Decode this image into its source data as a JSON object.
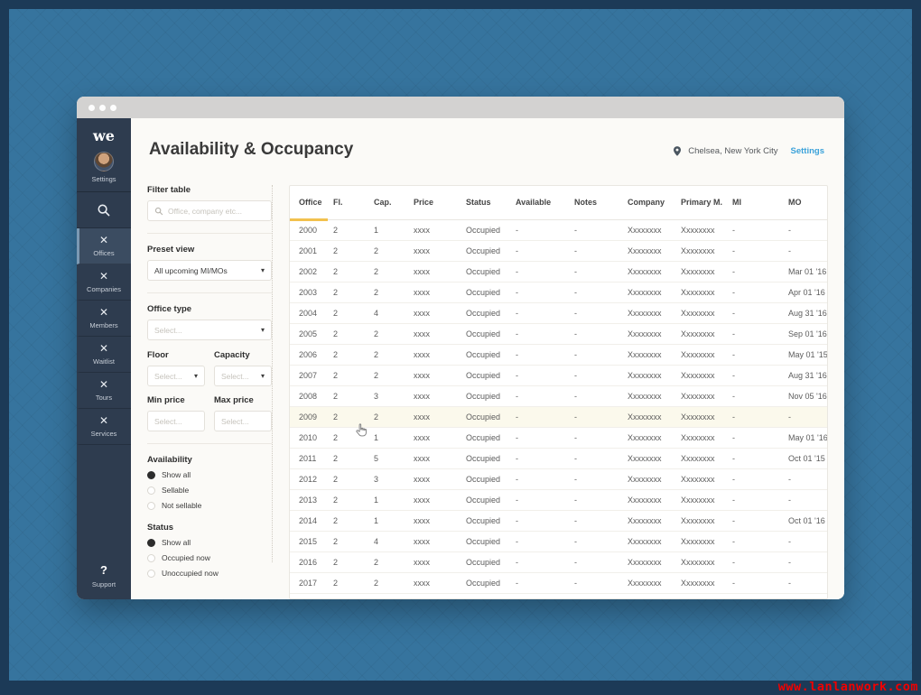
{
  "watermark": "www.lanlanwork.com",
  "window": {
    "traffic_dots": 3
  },
  "sidebar": {
    "logo": "we",
    "settings_label": "Settings",
    "items": [
      {
        "label": "Offices",
        "active": true
      },
      {
        "label": "Companies",
        "active": false
      },
      {
        "label": "Members",
        "active": false
      },
      {
        "label": "Waitlist",
        "active": false
      },
      {
        "label": "Tours",
        "active": false
      },
      {
        "label": "Services",
        "active": false
      }
    ],
    "support_icon": "?",
    "support_label": "Support"
  },
  "header": {
    "title": "Availability & Occupancy",
    "location": "Chelsea, New York City",
    "settings_link": "Settings"
  },
  "filters": {
    "filter_table_label": "Filter table",
    "search_placeholder": "Office, company etc...",
    "preset_view_label": "Preset view",
    "preset_view_value": "All upcoming MI/MOs",
    "office_type_label": "Office type",
    "office_type_value": "Select...",
    "floor_label": "Floor",
    "floor_value": "Select...",
    "capacity_label": "Capacity",
    "capacity_value": "Select...",
    "min_price_label": "Min price",
    "min_price_placeholder": "Select...",
    "max_price_label": "Max price",
    "max_price_placeholder": "Select...",
    "availability_label": "Availability",
    "availability_options": [
      {
        "label": "Show all",
        "selected": true
      },
      {
        "label": "Sellable",
        "selected": false
      },
      {
        "label": "Not sellable",
        "selected": false
      }
    ],
    "status_label": "Status",
    "status_options": [
      {
        "label": "Show all",
        "selected": true
      },
      {
        "label": "Occupied now",
        "selected": false
      },
      {
        "label": "Unoccupied now",
        "selected": false
      }
    ]
  },
  "table": {
    "columns": [
      "Office",
      "Fl.",
      "Cap.",
      "Price",
      "Status",
      "Available",
      "Notes",
      "Company",
      "Primary M.",
      "MI",
      "MO"
    ],
    "sorted_column": "Office",
    "highlighted_row_index": 9,
    "rows": [
      [
        "2000",
        "2",
        "1",
        "xxxx",
        "Occupied",
        "-",
        "-",
        "Xxxxxxxx",
        "Xxxxxxxx",
        "-",
        "-"
      ],
      [
        "2001",
        "2",
        "2",
        "xxxx",
        "Occupied",
        "-",
        "-",
        "Xxxxxxxx",
        "Xxxxxxxx",
        "-",
        "-"
      ],
      [
        "2002",
        "2",
        "2",
        "xxxx",
        "Occupied",
        "-",
        "-",
        "Xxxxxxxx",
        "Xxxxxxxx",
        "-",
        "Mar 01 '16"
      ],
      [
        "2003",
        "2",
        "2",
        "xxxx",
        "Occupied",
        "-",
        "-",
        "Xxxxxxxx",
        "Xxxxxxxx",
        "-",
        "Apr 01 '16"
      ],
      [
        "2004",
        "2",
        "4",
        "xxxx",
        "Occupied",
        "-",
        "-",
        "Xxxxxxxx",
        "Xxxxxxxx",
        "-",
        "Aug 31 '16"
      ],
      [
        "2005",
        "2",
        "2",
        "xxxx",
        "Occupied",
        "-",
        "-",
        "Xxxxxxxx",
        "Xxxxxxxx",
        "-",
        "Sep 01 '16"
      ],
      [
        "2006",
        "2",
        "2",
        "xxxx",
        "Occupied",
        "-",
        "-",
        "Xxxxxxxx",
        "Xxxxxxxx",
        "-",
        "May 01 '15"
      ],
      [
        "2007",
        "2",
        "2",
        "xxxx",
        "Occupied",
        "-",
        "-",
        "Xxxxxxxx",
        "Xxxxxxxx",
        "-",
        "Aug 31 '16"
      ],
      [
        "2008",
        "2",
        "3",
        "xxxx",
        "Occupied",
        "-",
        "-",
        "Xxxxxxxx",
        "Xxxxxxxx",
        "-",
        "Nov 05 '16"
      ],
      [
        "2009",
        "2",
        "2",
        "xxxx",
        "Occupied",
        "-",
        "-",
        "Xxxxxxxx",
        "Xxxxxxxx",
        "-",
        "-"
      ],
      [
        "2010",
        "2",
        "1",
        "xxxx",
        "Occupied",
        "-",
        "-",
        "Xxxxxxxx",
        "Xxxxxxxx",
        "-",
        "May 01 '16"
      ],
      [
        "2011",
        "2",
        "5",
        "xxxx",
        "Occupied",
        "-",
        "-",
        "Xxxxxxxx",
        "Xxxxxxxx",
        "-",
        "Oct 01 '15"
      ],
      [
        "2012",
        "2",
        "3",
        "xxxx",
        "Occupied",
        "-",
        "-",
        "Xxxxxxxx",
        "Xxxxxxxx",
        "-",
        "-"
      ],
      [
        "2013",
        "2",
        "1",
        "xxxx",
        "Occupied",
        "-",
        "-",
        "Xxxxxxxx",
        "Xxxxxxxx",
        "-",
        "-"
      ],
      [
        "2014",
        "2",
        "1",
        "xxxx",
        "Occupied",
        "-",
        "-",
        "Xxxxxxxx",
        "Xxxxxxxx",
        "-",
        "Oct 01 '16"
      ],
      [
        "2015",
        "2",
        "4",
        "xxxx",
        "Occupied",
        "-",
        "-",
        "Xxxxxxxx",
        "Xxxxxxxx",
        "-",
        "-"
      ],
      [
        "2016",
        "2",
        "2",
        "xxxx",
        "Occupied",
        "-",
        "-",
        "Xxxxxxxx",
        "Xxxxxxxx",
        "-",
        "-"
      ],
      [
        "2017",
        "2",
        "2",
        "xxxx",
        "Occupied",
        "-",
        "-",
        "Xxxxxxxx",
        "Xxxxxxxx",
        "-",
        "-"
      ]
    ]
  },
  "icons": {
    "nav_item": "✕",
    "dropdown_caret": "▾"
  },
  "colors": {
    "backdrop_blue": "#36749e",
    "frame_navy": "#1c3a57",
    "sidebar_navy": "#2e3c4f",
    "sidebar_active": "#3b4c61",
    "accent_yellow": "#f2c14e",
    "link_blue": "#3ba2da",
    "highlight_row": "#fbf9ec",
    "watermark_red": "#f20000"
  }
}
